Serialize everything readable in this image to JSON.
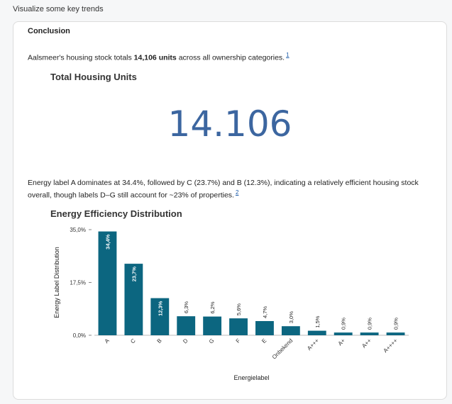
{
  "header": {
    "title": "Visualize some key trends"
  },
  "card": {
    "title": "Conclusion",
    "p1_before": "Aalsmeer's housing stock totals ",
    "p1_bold": "14,106 units",
    "p1_after": " across all ownership categories.",
    "p1_ref": "1",
    "kpi_title": "Total Housing Units",
    "kpi_value": "14.106",
    "p2_line1": "Energy label A dominates at 34.4%, followed by C (23.7%) and B (12.3%), indicating a relatively efficient housing stock",
    "p2_line2": "overall, though labels D–G still account for ~23% of properties.",
    "p2_ref": "2",
    "chart_title": "Energy Efficiency Distribution"
  },
  "chart_data": {
    "type": "bar",
    "title": "Energy Efficiency Distribution",
    "xlabel": "Energielabel",
    "ylabel": "Energy Label Distribution",
    "categories": [
      "A",
      "C",
      "B",
      "D",
      "G",
      "F",
      "E",
      "Onbekend",
      "A+++",
      "A+",
      "A++",
      "A++++"
    ],
    "values": [
      34.4,
      23.7,
      12.3,
      6.3,
      6.2,
      5.6,
      4.7,
      3.0,
      1.5,
      0.9,
      0.9,
      0.9
    ],
    "value_labels": [
      "34,4%",
      "23,7%",
      "12,3%",
      "6,3%",
      "6,2%",
      "5,6%",
      "4,7%",
      "3,0%",
      "1,5%",
      "0,9%",
      "0,9%",
      "0,9%"
    ],
    "yticks": [
      0,
      17.5,
      35
    ],
    "ytick_labels": [
      "0,0%",
      "17,5%",
      "35,0%"
    ],
    "ylim": [
      0,
      35
    ],
    "bar_color": "#0c6680",
    "grid": false
  }
}
